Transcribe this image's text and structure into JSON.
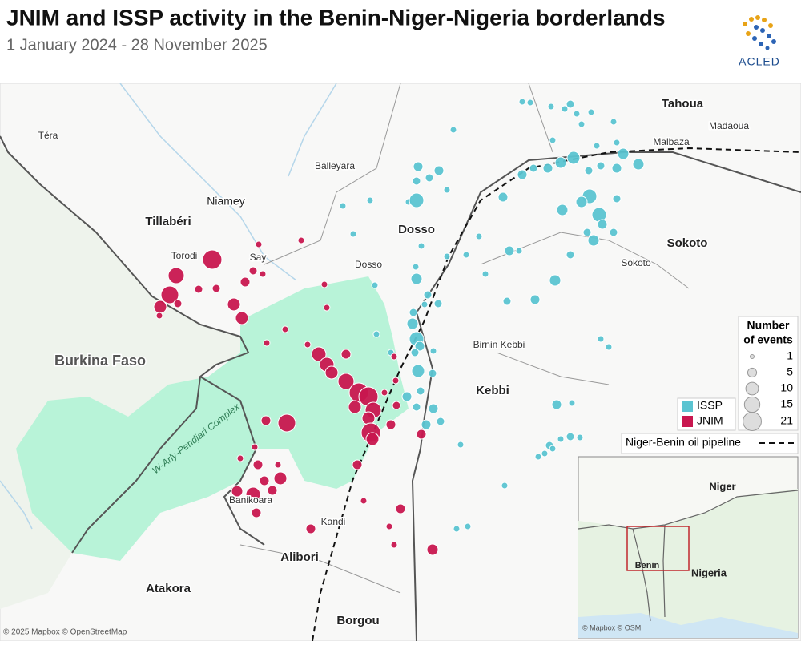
{
  "header": {
    "title": "JNIM and ISSP activity in the Benin-Niger-Nigeria borderlands",
    "subtitle": "1 January 2024 - 28 November 2025",
    "logo": "ACLED"
  },
  "map": {
    "labels": [
      "Téra",
      "Tahoua",
      "Madaoua",
      "Malbaza",
      "Balleyara",
      "Niamey",
      "Tillabéri",
      "Dosso",
      "Sokoto",
      "Torodi",
      "Say",
      "Dosso",
      "Sokoto",
      "Burkina Faso",
      "Birnin Kebbi",
      "Kebbi",
      "Banikoara",
      "Kandi",
      "Alibori",
      "Atakora",
      "Borgou"
    ],
    "protected_area": "W-Arly-Pendjari Complex",
    "attribution": "© 2025 Mapbox © OpenStreetMap"
  },
  "legend": {
    "title_lines": [
      "Number",
      "of events"
    ],
    "sizes": [
      1,
      5,
      10,
      15,
      21
    ],
    "series": [
      {
        "name": "ISSP",
        "color": "#5bc4d1"
      },
      {
        "name": "JNIM",
        "color": "#c8174f"
      }
    ],
    "pipeline": "Niger-Benin oil pipeline"
  },
  "inset": {
    "labels": [
      "Niger",
      "Benin",
      "Nigeria"
    ],
    "attribution": "© Mapbox © OSM"
  }
}
